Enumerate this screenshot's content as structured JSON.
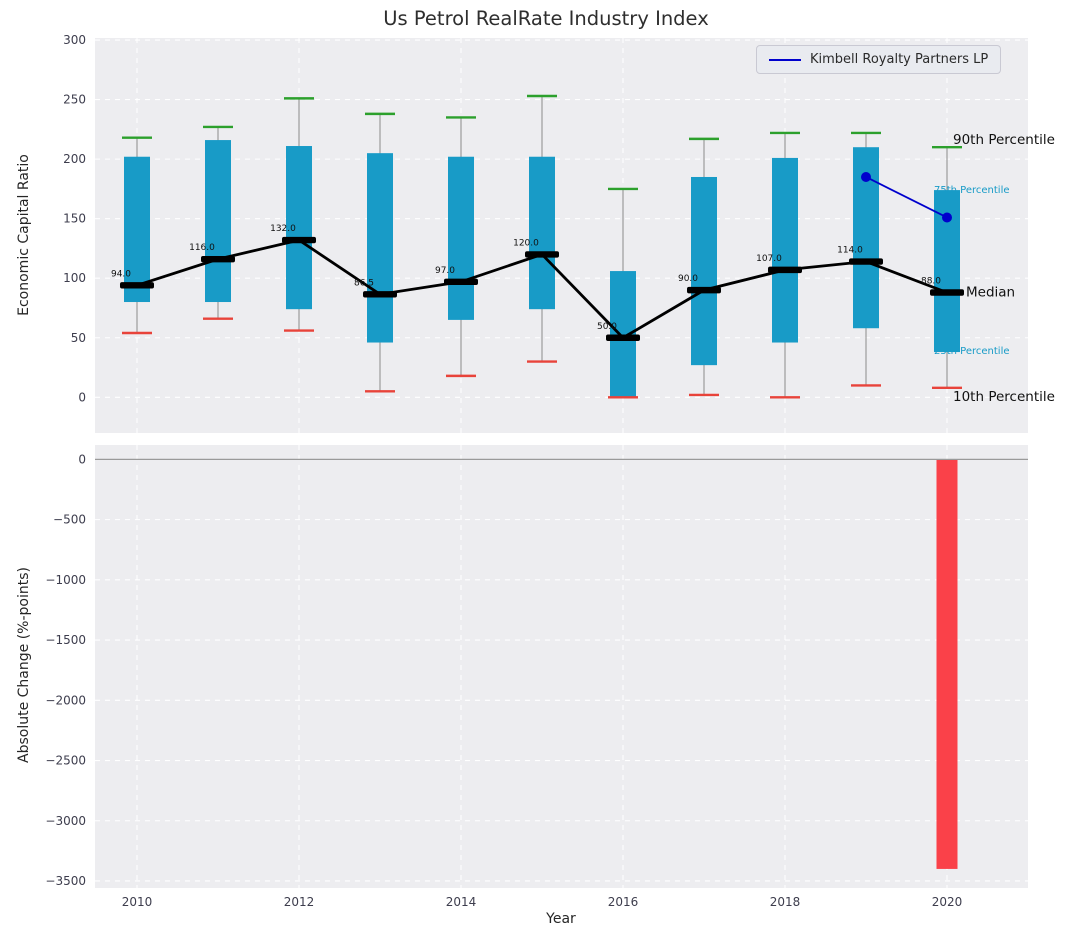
{
  "title": "Us Petrol RealRate Industry Index",
  "legend": {
    "label": "Kimbell Royalty Partners LP"
  },
  "annotations": {
    "p90": "90th Percentile",
    "p75": "75th Percentile",
    "median": "Median",
    "p25": "25th Percentile",
    "p10": "10th Percentile"
  },
  "colors": {
    "box": "#189bc7",
    "p90_cap": "#2ca02c",
    "p10_cap": "#e8433a",
    "median": "#000000",
    "median_line": "#000000",
    "company_line": "#0000cd",
    "negative_bar": "#fa4149",
    "whisker": "#9b9b9b",
    "axes_bg": "#ededf0",
    "grid": "#ffffff",
    "zero_line": "#9a9a9a",
    "tick_label": "#3d3d4d"
  },
  "chart_data": [
    {
      "type": "boxplot-percentiles",
      "title": "Us Petrol RealRate Industry Index",
      "ylabel": "Economic Capital Ratio",
      "ylim": [
        -30,
        300
      ],
      "yticks": [
        300,
        250,
        200,
        150,
        100,
        50,
        0
      ],
      "ytick_labels": [
        "300",
        "250",
        "200",
        "150",
        "100",
        "50",
        "0"
      ],
      "grid": true,
      "legend_position": "upper right",
      "years": [
        2010,
        2011,
        2012,
        2013,
        2014,
        2015,
        2016,
        2017,
        2018,
        2019,
        2020
      ],
      "p90": [
        218,
        227,
        251,
        238,
        235,
        253,
        175,
        217,
        222,
        222,
        210
      ],
      "p75": [
        202,
        216,
        211,
        205,
        202,
        202,
        106,
        185,
        201,
        210,
        174
      ],
      "median": [
        94,
        116,
        132,
        86.5,
        97,
        120,
        50,
        90,
        107,
        114,
        88
      ],
      "p25": [
        80,
        80,
        74,
        46,
        65,
        74,
        0,
        27,
        46,
        58,
        38
      ],
      "p10": [
        54,
        66,
        56,
        5,
        18,
        30,
        0,
        2,
        0,
        10,
        8
      ],
      "median_labels": [
        "94.0",
        "116.0",
        "132.0",
        "86.5",
        "97.0",
        "120.0",
        "50.0",
        "90.0",
        "107.0",
        "114.0",
        "88.0"
      ],
      "company_series": {
        "name": "Kimbell Royalty Partners LP",
        "years": [
          2019,
          2020
        ],
        "values": [
          185,
          151
        ]
      }
    },
    {
      "type": "bar",
      "ylabel": "Absolute Change (%-points)",
      "xlabel": "Year",
      "ylim": [
        -3600,
        120
      ],
      "yticks": [
        0,
        -500,
        -1000,
        -1500,
        -2000,
        -2500,
        -3000,
        -3500
      ],
      "ytick_labels": [
        "0",
        "−500",
        "−1000",
        "−1500",
        "−2000",
        "−2500",
        "−3000",
        "−3500"
      ],
      "xticks": [
        2010,
        2012,
        2014,
        2016,
        2018,
        2020
      ],
      "xtick_labels": [
        "2010",
        "2012",
        "2014",
        "2016",
        "2018",
        "2020"
      ],
      "bars": [
        {
          "year": 2020,
          "value": -3400
        }
      ]
    }
  ]
}
